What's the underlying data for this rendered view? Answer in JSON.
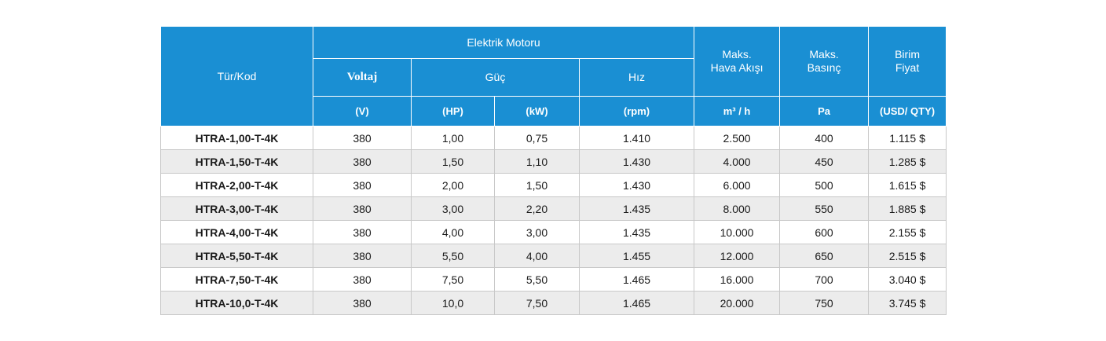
{
  "header": {
    "tur_kod": "Tür/Kod",
    "elektrik_motoru": "Elektrik Motoru",
    "voltaj": "Voltaj",
    "guc": "Güç",
    "hiz": "Hız",
    "hava_akisi_line1": "Maks.",
    "hava_akisi_line2": "Hava Akışı",
    "basinc_line1": "Maks.",
    "basinc_line2": "Basınç",
    "fiyat_line1": "Birim",
    "fiyat_line2": "Fiyat"
  },
  "units": {
    "voltaj": "(V)",
    "hp": "(HP)",
    "kw": "(kW)",
    "rpm": "(rpm)",
    "airflow": "m³ / h",
    "pressure": "Pa",
    "price": "(USD/ QTY)"
  },
  "rows": [
    {
      "code": "HTRA-1,00-T-4K",
      "v": "380",
      "hp": "1,00",
      "kw": "0,75",
      "rpm": "1.410",
      "air": "2.500",
      "pa": "400",
      "price": "1.115 $"
    },
    {
      "code": "HTRA-1,50-T-4K",
      "v": "380",
      "hp": "1,50",
      "kw": "1,10",
      "rpm": "1.430",
      "air": "4.000",
      "pa": "450",
      "price": "1.285 $"
    },
    {
      "code": "HTRA-2,00-T-4K",
      "v": "380",
      "hp": "2,00",
      "kw": "1,50",
      "rpm": "1.430",
      "air": "6.000",
      "pa": "500",
      "price": "1.615 $"
    },
    {
      "code": "HTRA-3,00-T-4K",
      "v": "380",
      "hp": "3,00",
      "kw": "2,20",
      "rpm": "1.435",
      "air": "8.000",
      "pa": "550",
      "price": "1.885 $"
    },
    {
      "code": "HTRA-4,00-T-4K",
      "v": "380",
      "hp": "4,00",
      "kw": "3,00",
      "rpm": "1.435",
      "air": "10.000",
      "pa": "600",
      "price": "2.155 $"
    },
    {
      "code": "HTRA-5,50-T-4K",
      "v": "380",
      "hp": "5,50",
      "kw": "4,00",
      "rpm": "1.455",
      "air": "12.000",
      "pa": "650",
      "price": "2.515 $"
    },
    {
      "code": "HTRA-7,50-T-4K",
      "v": "380",
      "hp": "7,50",
      "kw": "5,50",
      "rpm": "1.465",
      "air": "16.000",
      "pa": "700",
      "price": "3.040 $"
    },
    {
      "code": "HTRA-10,0-T-4K",
      "v": "380",
      "hp": "10,0",
      "kw": "7,50",
      "rpm": "1.465",
      "air": "20.000",
      "pa": "750",
      "price": "3.745 $"
    }
  ]
}
